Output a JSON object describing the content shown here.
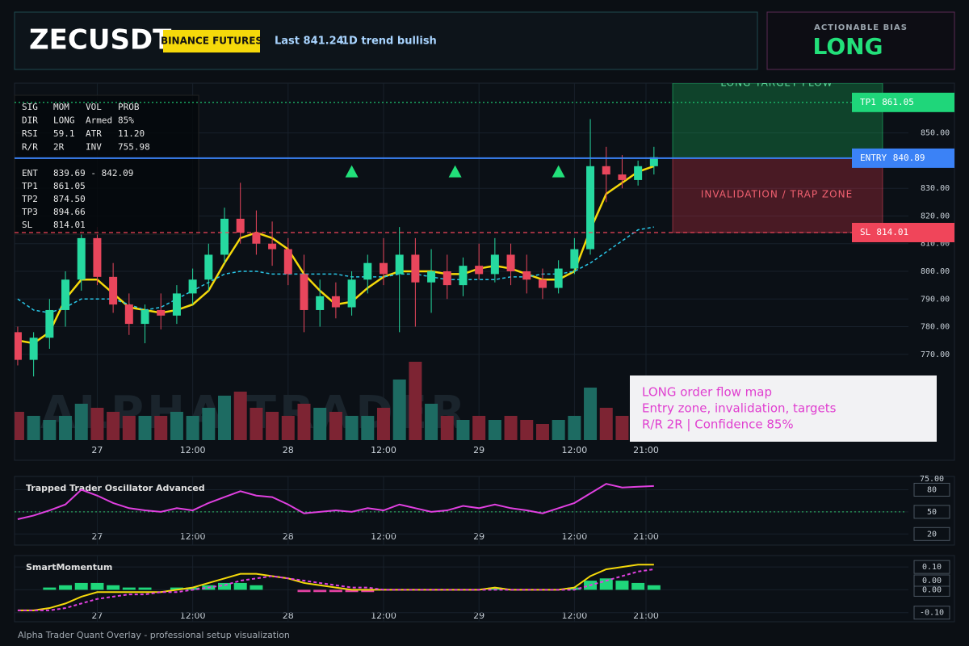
{
  "header": {
    "symbol": "ZECUSDT",
    "exchange": "BINANCE FUTURES",
    "last": "Last 841.24",
    "trend": "1D trend bullish"
  },
  "bias": {
    "title": "ACTIONABLE BIAS",
    "value": "LONG"
  },
  "info": {
    "grid": [
      [
        "SIG",
        "MOM",
        "VOL",
        "PROB"
      ],
      [
        "DIR",
        "LONG",
        "Armed",
        "85%"
      ],
      [
        "RSI",
        "59.1",
        "ATR",
        "11.20"
      ],
      [
        "R/R",
        "2R",
        "INV",
        "755.98"
      ]
    ],
    "levels": [
      [
        "ENT",
        "839.69 - 842.09"
      ],
      [
        "TP1",
        "861.05"
      ],
      [
        "TP2",
        "874.50"
      ],
      [
        "TP3",
        "894.66"
      ],
      [
        "SL",
        "814.01"
      ]
    ]
  },
  "note": [
    "LONG order flow map",
    "Entry zone, invalidation, targets",
    "R/R 2R | Confidence 85%"
  ],
  "footer": "Alpha Trader Quant Overlay - professional setup visualization",
  "chart_data": [
    {
      "type": "candlestick",
      "watermark": "ALPHA TRADER",
      "grid": true,
      "up_color": "#26d9a0",
      "down_color": "#e8465c",
      "volume_up_color": "#1d6b62",
      "volume_down_color": "#7d2433",
      "x": [
        -10,
        -8,
        -6,
        -4,
        -2,
        0,
        2,
        4,
        6,
        8,
        10,
        12,
        14,
        16,
        18,
        20,
        22,
        24,
        26,
        28,
        30,
        32,
        34,
        36,
        38,
        40,
        42,
        44,
        46,
        48,
        50,
        52,
        54,
        56,
        58,
        60,
        62,
        64,
        66,
        68,
        70
      ],
      "open": [
        778,
        768,
        776,
        786,
        797,
        812,
        798,
        788,
        781,
        786,
        784,
        792,
        797,
        806,
        819,
        814,
        810,
        808,
        799,
        786,
        791,
        787,
        797,
        803,
        799,
        806,
        796,
        800,
        795,
        802,
        799,
        806,
        800,
        797,
        794,
        801,
        808,
        838,
        835,
        833,
        838
      ],
      "high": [
        780,
        778,
        790,
        800,
        815,
        816,
        803,
        792,
        788,
        792,
        795,
        801,
        810,
        823,
        832,
        822,
        818,
        812,
        806,
        797,
        796,
        800,
        806,
        812,
        816,
        812,
        808,
        806,
        805,
        810,
        812,
        810,
        806,
        801,
        804,
        812,
        855,
        845,
        842,
        840,
        845
      ],
      "low": [
        766,
        762,
        772,
        780,
        793,
        795,
        785,
        777,
        774,
        779,
        781,
        788,
        793,
        803,
        810,
        806,
        802,
        795,
        778,
        780,
        783,
        784,
        792,
        795,
        778,
        780,
        785,
        790,
        791,
        797,
        796,
        795,
        792,
        790,
        792,
        799,
        806,
        825,
        830,
        831,
        835
      ],
      "close": [
        768,
        776,
        786,
        797,
        812,
        798,
        788,
        781,
        786,
        784,
        792,
        797,
        806,
        819,
        814,
        810,
        808,
        799,
        786,
        791,
        787,
        797,
        803,
        799,
        806,
        796,
        800,
        795,
        802,
        799,
        806,
        800,
        797,
        794,
        801,
        808,
        838,
        835,
        833,
        838,
        841.24
      ],
      "volume": [
        35,
        30,
        25,
        30,
        45,
        40,
        35,
        30,
        30,
        30,
        35,
        30,
        40,
        55,
        60,
        40,
        35,
        30,
        45,
        40,
        35,
        30,
        30,
        40,
        75,
        97,
        45,
        30,
        25,
        30,
        25,
        30,
        25,
        20,
        25,
        30,
        65,
        40,
        30,
        25,
        20
      ],
      "overlays": [
        {
          "color": "#f5d90a",
          "values": [
            775,
            774,
            778,
            790,
            797,
            797,
            792,
            787,
            786,
            785,
            786,
            788,
            793,
            803,
            812,
            814,
            812,
            808,
            799,
            793,
            788,
            789,
            794,
            798,
            800,
            800,
            800,
            799,
            799,
            801,
            802,
            801,
            799,
            797,
            797,
            800,
            815,
            828,
            832,
            836,
            838
          ]
        },
        {
          "color": "#29c5e6",
          "dashed": true,
          "values": [
            790,
            786,
            785,
            787,
            790,
            790,
            790,
            788,
            786,
            787,
            790,
            793,
            796,
            799,
            800,
            800,
            799,
            799,
            799,
            799,
            799,
            798,
            798,
            798,
            799,
            799,
            798,
            797,
            797,
            797,
            797,
            798,
            798,
            799,
            799,
            800,
            803,
            807,
            811,
            815,
            816
          ]
        }
      ],
      "signals": {
        "color": "#22e07a",
        "x": [
          32,
          45,
          58
        ],
        "y": [
          836,
          836,
          836
        ]
      },
      "levels": [
        {
          "label": "TP1",
          "value": 861.05,
          "color": "#1fd67a"
        },
        {
          "label": "ENTRY",
          "value": 840.89,
          "color": "#3b82f6"
        },
        {
          "label": "SL",
          "value": 814.01,
          "color": "#f0455a"
        }
      ],
      "zones": [
        "LONG TARGET FLOW",
        "INVALIDATION / TRAP ZONE"
      ],
      "xlim": [
        -10.4,
        102
      ],
      "xticks": [
        {
          "value": 0,
          "label": "27"
        },
        {
          "value": 12,
          "label": "12:00"
        },
        {
          "value": 24,
          "label": "28"
        },
        {
          "value": 36,
          "label": "12:00"
        },
        {
          "value": 48,
          "label": "29"
        },
        {
          "value": 60,
          "label": "12:00"
        },
        {
          "value": 69,
          "label": "21:00"
        }
      ],
      "ylim": [
        739,
        868
      ],
      "yticks": [
        {
          "value": 770,
          "label": "770.00"
        },
        {
          "value": 780,
          "label": "780.00"
        },
        {
          "value": 790,
          "label": "790.00"
        },
        {
          "value": 800,
          "label": "800.00"
        },
        {
          "value": 810,
          "label": "810.00"
        },
        {
          "value": 820,
          "label": "820.00"
        },
        {
          "value": 830,
          "label": "830.00"
        },
        {
          "value": 850,
          "label": "850.00"
        }
      ]
    },
    {
      "type": "line",
      "title": "Trapped Trader Oscillator Advanced",
      "top_label": "75.00",
      "hline": 50,
      "hline_color": "#2fbf6a",
      "x": [
        -10,
        -8,
        -6,
        -4,
        -2,
        0,
        2,
        4,
        6,
        8,
        10,
        12,
        14,
        16,
        18,
        20,
        22,
        24,
        26,
        28,
        30,
        32,
        34,
        36,
        38,
        40,
        42,
        44,
        46,
        48,
        50,
        52,
        54,
        56,
        58,
        60,
        62,
        64,
        66,
        68,
        70
      ],
      "series": [
        {
          "color": "#e040e0",
          "values": [
            40,
            45,
            52,
            60,
            80,
            72,
            62,
            55,
            52,
            50,
            55,
            52,
            62,
            70,
            78,
            72,
            70,
            60,
            48,
            50,
            52,
            50,
            55,
            52,
            60,
            55,
            50,
            52,
            58,
            55,
            60,
            55,
            52,
            48,
            55,
            62,
            75,
            88,
            83,
            84,
            85
          ]
        }
      ],
      "xlim": [
        -10.4,
        102
      ],
      "xticks": [
        {
          "value": 0,
          "label": "27"
        },
        {
          "value": 12,
          "label": "12:00"
        },
        {
          "value": 24,
          "label": "28"
        },
        {
          "value": 36,
          "label": "12:00"
        },
        {
          "value": 48,
          "label": "29"
        },
        {
          "value": 60,
          "label": "12:00"
        },
        {
          "value": 69,
          "label": "21:00"
        }
      ],
      "ylim": [
        5,
        98
      ],
      "yticks": [
        20,
        50,
        80
      ]
    },
    {
      "type": "line",
      "title": "SmartMomentum",
      "badge_label": "0.00",
      "x": [
        -10,
        -8,
        -6,
        -4,
        -2,
        0,
        2,
        4,
        6,
        8,
        10,
        12,
        14,
        16,
        18,
        20,
        22,
        24,
        26,
        28,
        30,
        32,
        34,
        36,
        38,
        40,
        42,
        44,
        46,
        48,
        50,
        52,
        54,
        56,
        58,
        60,
        62,
        64,
        66,
        68,
        70
      ],
      "series": [
        {
          "color": "#f5d90a",
          "values": [
            -0.09,
            -0.09,
            -0.08,
            -0.06,
            -0.03,
            -0.01,
            -0.01,
            -0.01,
            -0.01,
            -0.01,
            0,
            0.01,
            0.03,
            0.05,
            0.07,
            0.07,
            0.06,
            0.05,
            0.03,
            0.02,
            0.01,
            0,
            0,
            0,
            0,
            0,
            0,
            0,
            0,
            0,
            0.01,
            0,
            0,
            0,
            0,
            0.01,
            0.06,
            0.09,
            0.1,
            0.11,
            0.11
          ]
        },
        {
          "color": "#e040e0",
          "dashed": true,
          "values": [
            -0.09,
            -0.09,
            -0.09,
            -0.08,
            -0.06,
            -0.04,
            -0.03,
            -0.02,
            -0.02,
            -0.01,
            -0.01,
            0,
            0.01,
            0.02,
            0.04,
            0.05,
            0.06,
            0.05,
            0.04,
            0.03,
            0.02,
            0.01,
            0.01,
            0,
            0,
            0,
            0,
            0,
            0,
            0,
            0,
            0,
            0,
            0,
            0,
            0,
            0.02,
            0.04,
            0.06,
            0.08,
            0.09
          ]
        }
      ],
      "histogram": {
        "up_color": "#1fd67a",
        "down_color": "#e040a0",
        "values": [
          0,
          0,
          0.01,
          0.02,
          0.03,
          0.03,
          0.02,
          0.01,
          0.01,
          0,
          0.01,
          0.01,
          0.02,
          0.03,
          0.03,
          0.02,
          0,
          0,
          -0.01,
          -0.01,
          -0.01,
          -0.01,
          -0.01,
          0,
          0,
          0,
          0,
          0,
          0,
          0,
          0.01,
          0,
          0,
          0,
          0,
          0.01,
          0.04,
          0.05,
          0.04,
          0.03,
          0.02
        ]
      },
      "xlim": [
        -10.4,
        102
      ],
      "xticks": [
        {
          "value": 0,
          "label": "27"
        },
        {
          "value": 12,
          "label": "12:00"
        },
        {
          "value": 24,
          "label": "28"
        },
        {
          "value": 36,
          "label": "12:00"
        },
        {
          "value": 48,
          "label": "29"
        },
        {
          "value": 60,
          "label": "12:00"
        },
        {
          "value": 69,
          "label": "21:00"
        }
      ],
      "ylim": [
        -0.14,
        0.15
      ],
      "yticks": [
        {
          "value": -0.1,
          "label": "-0.10"
        },
        {
          "value": 0,
          "label": "0.00"
        },
        {
          "value": 0.1,
          "label": "0.10"
        }
      ]
    }
  ]
}
